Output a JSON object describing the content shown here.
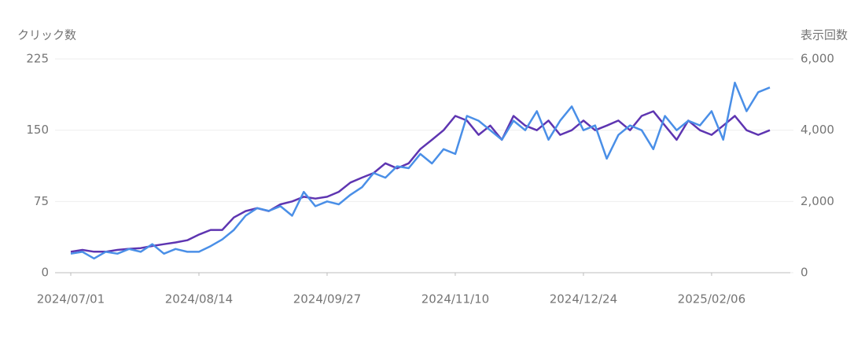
{
  "chart_data": {
    "type": "line",
    "y_label": "クリック数",
    "y2_label": "表示回数",
    "x": [
      "2024/07/01",
      "2024/07/05",
      "2024/07/09",
      "2024/07/13",
      "2024/07/17",
      "2024/07/21",
      "2024/07/25",
      "2024/07/29",
      "2024/08/02",
      "2024/08/06",
      "2024/08/10",
      "2024/08/14",
      "2024/08/18",
      "2024/08/22",
      "2024/08/26",
      "2024/08/30",
      "2024/09/03",
      "2024/09/07",
      "2024/09/11",
      "2024/09/15",
      "2024/09/19",
      "2024/09/23",
      "2024/09/27",
      "2024/10/01",
      "2024/10/05",
      "2024/10/09",
      "2024/10/13",
      "2024/10/17",
      "2024/10/21",
      "2024/10/25",
      "2024/10/29",
      "2024/11/02",
      "2024/11/06",
      "2024/11/10",
      "2024/11/14",
      "2024/11/18",
      "2024/11/22",
      "2024/11/26",
      "2024/11/30",
      "2024/12/04",
      "2024/12/08",
      "2024/12/12",
      "2024/12/16",
      "2024/12/20",
      "2024/12/24",
      "2024/12/28",
      "2025/01/01",
      "2025/01/05",
      "2025/01/09",
      "2025/01/13",
      "2025/01/17",
      "2025/01/21",
      "2025/01/25",
      "2025/01/29",
      "2025/02/02",
      "2025/02/06",
      "2025/02/10",
      "2025/02/14",
      "2025/02/18",
      "2025/02/22",
      "2025/02/26"
    ],
    "xticks": [
      "2024/07/01",
      "2024/08/14",
      "2024/09/27",
      "2024/11/10",
      "2024/12/24",
      "2025/02/06"
    ],
    "ylim": [
      0,
      225
    ],
    "yticks": [
      0,
      75,
      150,
      225
    ],
    "y2lim": [
      0,
      6000
    ],
    "y2ticks": [
      0,
      {
        "value": 2000,
        "label": "2,000"
      },
      {
        "value": 4000,
        "label": "4,000"
      },
      {
        "value": 6000,
        "label": "6,000"
      }
    ],
    "grid": true,
    "series": [
      {
        "name": "表示回数",
        "color": "#5e35b1",
        "axis": "y2",
        "values": [
          590,
          640,
          590,
          590,
          640,
          670,
          690,
          750,
          800,
          850,
          910,
          1070,
          1200,
          1200,
          1550,
          1730,
          1810,
          1730,
          1920,
          2000,
          2130,
          2080,
          2130,
          2270,
          2530,
          2670,
          2800,
          3070,
          2930,
          3070,
          3470,
          3730,
          4000,
          4400,
          4270,
          3870,
          4130,
          3730,
          4400,
          4130,
          4000,
          4270,
          3870,
          4000,
          4270,
          4000,
          4130,
          4270,
          4000,
          4400,
          4530,
          4130,
          3730,
          4270,
          4000,
          3870,
          4130,
          4400,
          4000,
          3870,
          4000
        ]
      },
      {
        "name": "クリック数",
        "color": "#4a8fe7",
        "axis": "y",
        "values": [
          20,
          22,
          15,
          22,
          20,
          25,
          22,
          30,
          20,
          25,
          22,
          22,
          28,
          35,
          45,
          60,
          68,
          65,
          70,
          60,
          85,
          70,
          75,
          72,
          82,
          90,
          105,
          100,
          112,
          110,
          125,
          115,
          130,
          125,
          165,
          160,
          150,
          140,
          160,
          150,
          170,
          140,
          160,
          175,
          150,
          155,
          120,
          145,
          155,
          150,
          130,
          165,
          150,
          160,
          155,
          170,
          140,
          200,
          170,
          190,
          195
        ]
      }
    ]
  }
}
